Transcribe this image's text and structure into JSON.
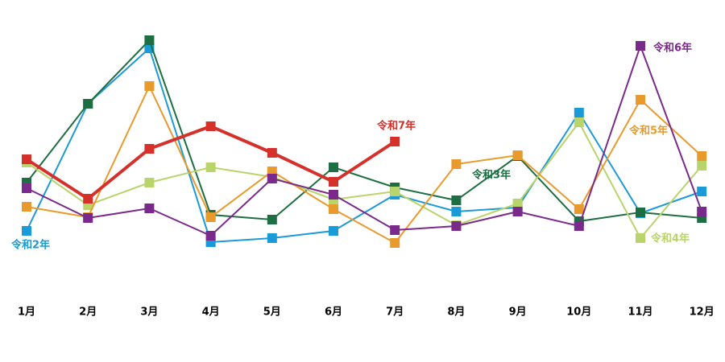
{
  "chart_data": {
    "type": "line",
    "categories": [
      "1月",
      "2月",
      "3月",
      "4月",
      "5月",
      "6月",
      "7月",
      "8月",
      "9月",
      "10月",
      "11月",
      "12月"
    ],
    "ylim": [
      0,
      350
    ],
    "series": [
      {
        "name": "令和2年",
        "color": "#1a9ad6",
        "values": [
          93,
          251,
          320,
          79,
          84,
          93,
          138,
          117,
          122,
          240,
          115,
          142
        ]
      },
      {
        "name": "令和3年",
        "color": "#1d6e42",
        "values": [
          153,
          251,
          330,
          113,
          107,
          172,
          147,
          131,
          186,
          105,
          116,
          109
        ]
      },
      {
        "name": "令和4年",
        "color": "#b8d46a",
        "values": [
          178,
          125,
          153,
          172,
          160,
          132,
          142,
          100,
          127,
          228,
          84,
          174
        ]
      },
      {
        "name": "令和5年",
        "color": "#e89a2c",
        "values": [
          123,
          110,
          273,
          110,
          167,
          120,
          78,
          176,
          187,
          120,
          256,
          186
        ]
      },
      {
        "name": "令和6年",
        "color": "#7a2a8a",
        "values": [
          146,
          109,
          121,
          87,
          158,
          138,
          94,
          99,
          117,
          99,
          323,
          117
        ]
      },
      {
        "name": "令和7年",
        "color": "#d6302a",
        "values": [
          182,
          133,
          195,
          223,
          190,
          154,
          204,
          null,
          null,
          null,
          null,
          null
        ]
      }
    ]
  }
}
